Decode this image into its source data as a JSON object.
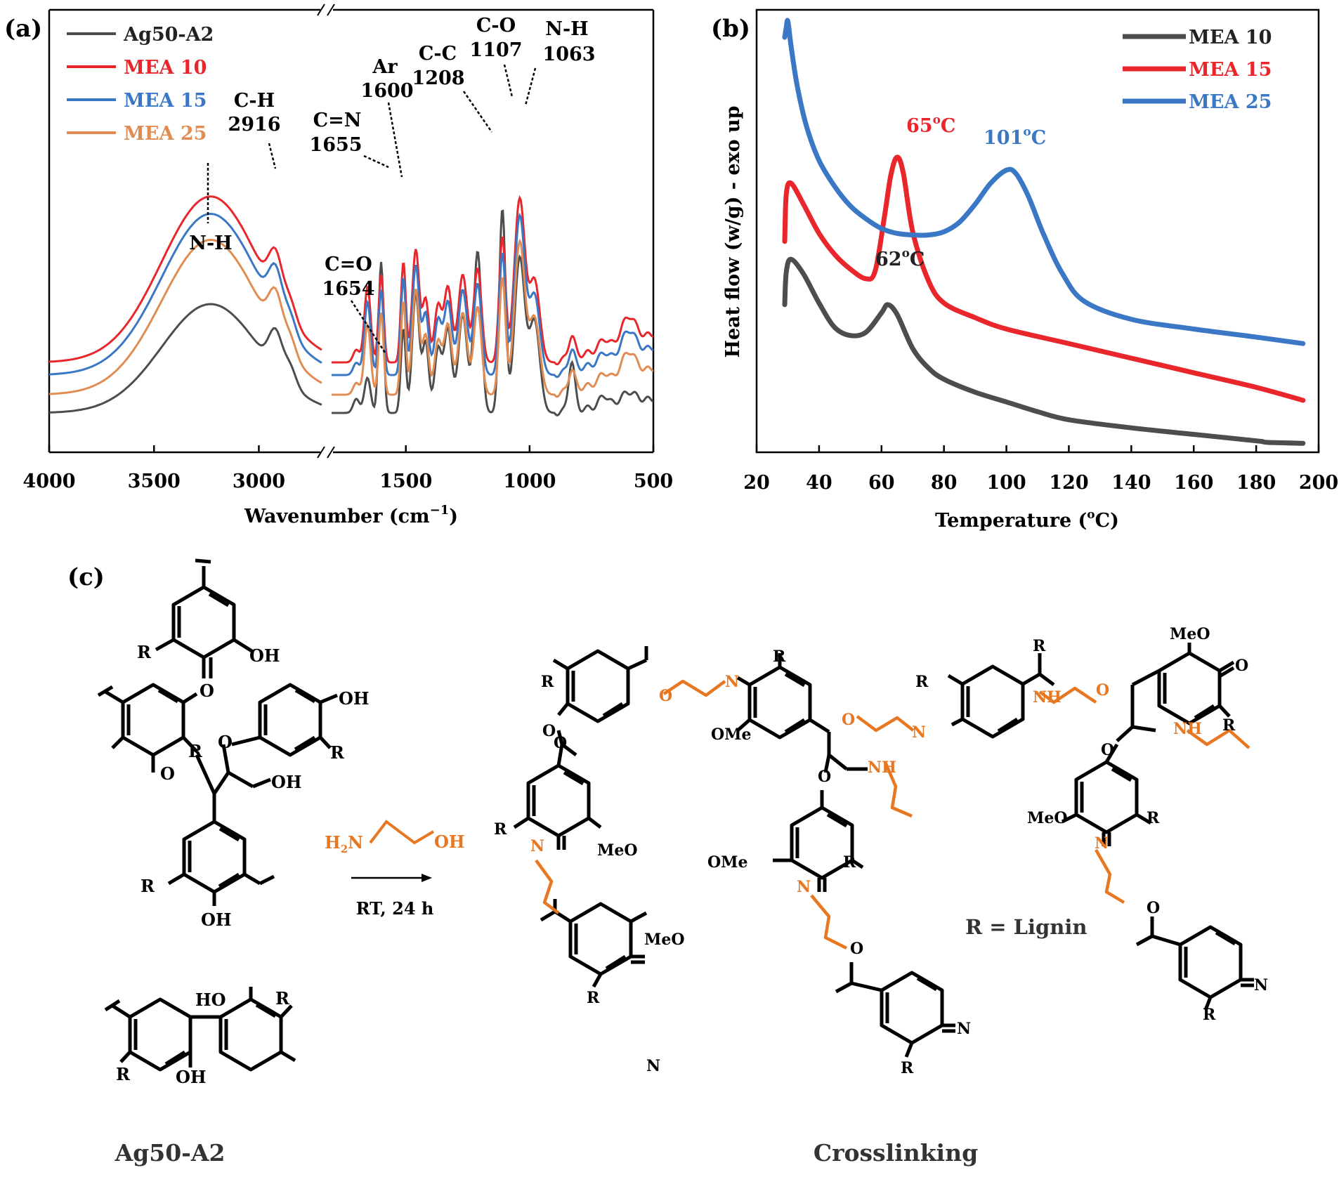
{
  "panels": {
    "a": "(a)",
    "b": "(b)",
    "c": "(c)"
  },
  "colors": {
    "black": "#4d4d4d",
    "red": "#e8262b",
    "blue": "#3a77c4",
    "orange": "#e08c52",
    "chem_orange": "#e87722"
  },
  "chart_data": [
    {
      "type": "line",
      "title": "",
      "xlabel": "Wavenumber (cm⁻¹)",
      "ylabel": "",
      "xlim": [
        4000,
        500
      ],
      "axis_break": [
        2700,
        1800
      ],
      "xticks": [
        "4000",
        "3500",
        "3000",
        "1500",
        "1000",
        "500"
      ],
      "xtick_values": [
        4000,
        3500,
        3000,
        1500,
        1000,
        500
      ],
      "legend": [
        "Ag50-A2",
        "MEA 10",
        "MEA 15",
        "MEA 25"
      ],
      "annotations": [
        {
          "label": "N-H",
          "x": 3250
        },
        {
          "label": "C-H",
          "x": 2916,
          "value": "2916"
        },
        {
          "label": "C=N",
          "x": 1655,
          "value": "1655"
        },
        {
          "label": "Ar",
          "x": 1600,
          "value": "1600"
        },
        {
          "label": "C-C",
          "x": 1208,
          "value": "1208"
        },
        {
          "label": "C-O",
          "x": 1107,
          "value": "1107"
        },
        {
          "label": "N-H",
          "x": 1063,
          "value": "1063"
        },
        {
          "label": "C=O",
          "x": 1654,
          "value": "1654"
        }
      ]
    },
    {
      "type": "line",
      "title": "",
      "xlabel": "Temperature (°C)",
      "xlabel_prefix": "Temperature (",
      "xlabel_sup": "o",
      "xlabel_suffix": "C)",
      "ylabel": "Heat flow (w/g) - exo up",
      "xlim": [
        20,
        200
      ],
      "xticks": [
        "20",
        "40",
        "60",
        "80",
        "100",
        "120",
        "140",
        "160",
        "180",
        "200"
      ],
      "xtick_values": [
        20,
        40,
        60,
        80,
        100,
        120,
        140,
        160,
        180,
        200
      ],
      "series": [
        {
          "name": "MEA 10",
          "peak_x": 62,
          "peak_label": "62",
          "peak_unit": "C",
          "x": [
            29,
            29.5,
            31,
            35,
            40,
            45,
            50,
            55,
            60,
            62,
            65,
            70,
            75,
            80,
            90,
            100,
            110,
            120,
            140,
            160,
            180,
            182,
            184,
            195
          ],
          "y": [
            0.85,
            1.05,
            1.13,
            1.04,
            0.86,
            0.71,
            0.66,
            0.68,
            0.8,
            0.85,
            0.79,
            0.58,
            0.46,
            0.39,
            0.31,
            0.25,
            0.19,
            0.14,
            0.09,
            0.05,
            0.01,
            0.005,
            0.0,
            -0.005
          ]
        },
        {
          "name": "MEA 15",
          "peak_x": 65,
          "peak_label": "65",
          "peak_unit": "C",
          "x": [
            29,
            29.5,
            31,
            35,
            40,
            45,
            50,
            55,
            58,
            61,
            63,
            65,
            67,
            70,
            75,
            80,
            90,
            100,
            120,
            140,
            160,
            180,
            195
          ],
          "y": [
            1.24,
            1.53,
            1.6,
            1.47,
            1.29,
            1.16,
            1.07,
            1.01,
            1.06,
            1.4,
            1.65,
            1.76,
            1.66,
            1.3,
            1.0,
            0.86,
            0.77,
            0.7,
            0.61,
            0.52,
            0.43,
            0.34,
            0.26
          ]
        },
        {
          "name": "MEA 25",
          "peak_x": 101,
          "peak_label": "101",
          "peak_unit": "C",
          "x": [
            29,
            29.5,
            30,
            31,
            33,
            36,
            40,
            45,
            50,
            55,
            60,
            65,
            70,
            75,
            80,
            85,
            90,
            95,
            100,
            103,
            107,
            112,
            118,
            125,
            140,
            160,
            180,
            195
          ],
          "y": [
            2.5,
            2.56,
            2.6,
            2.45,
            2.2,
            1.95,
            1.74,
            1.58,
            1.46,
            1.38,
            1.32,
            1.29,
            1.28,
            1.28,
            1.3,
            1.36,
            1.47,
            1.6,
            1.68,
            1.66,
            1.52,
            1.28,
            1.04,
            0.87,
            0.76,
            0.7,
            0.65,
            0.61
          ]
        }
      ]
    }
  ],
  "ir_colors": [
    "#4d4d4d",
    "#e8262b",
    "#3a77c4",
    "#e08c52"
  ],
  "dsc_colors": [
    "#4d4d4d",
    "#e8262b",
    "#3a77c4"
  ],
  "scheme": {
    "reagent_left": "H",
    "reagent_sub": "2",
    "reagent_n": "N",
    "reagent_right": "OH",
    "condition": "RT, 24 h",
    "left_caption": "Ag50-A2",
    "right_caption": "Crosslinking",
    "r_note": "R = Lignin",
    "labels": {
      "R": "R",
      "OH": "OH",
      "O": "O",
      "HO": "HO",
      "MeO": "MeO",
      "OMe": "OMe",
      "N": "N",
      "NH": "NH"
    }
  }
}
